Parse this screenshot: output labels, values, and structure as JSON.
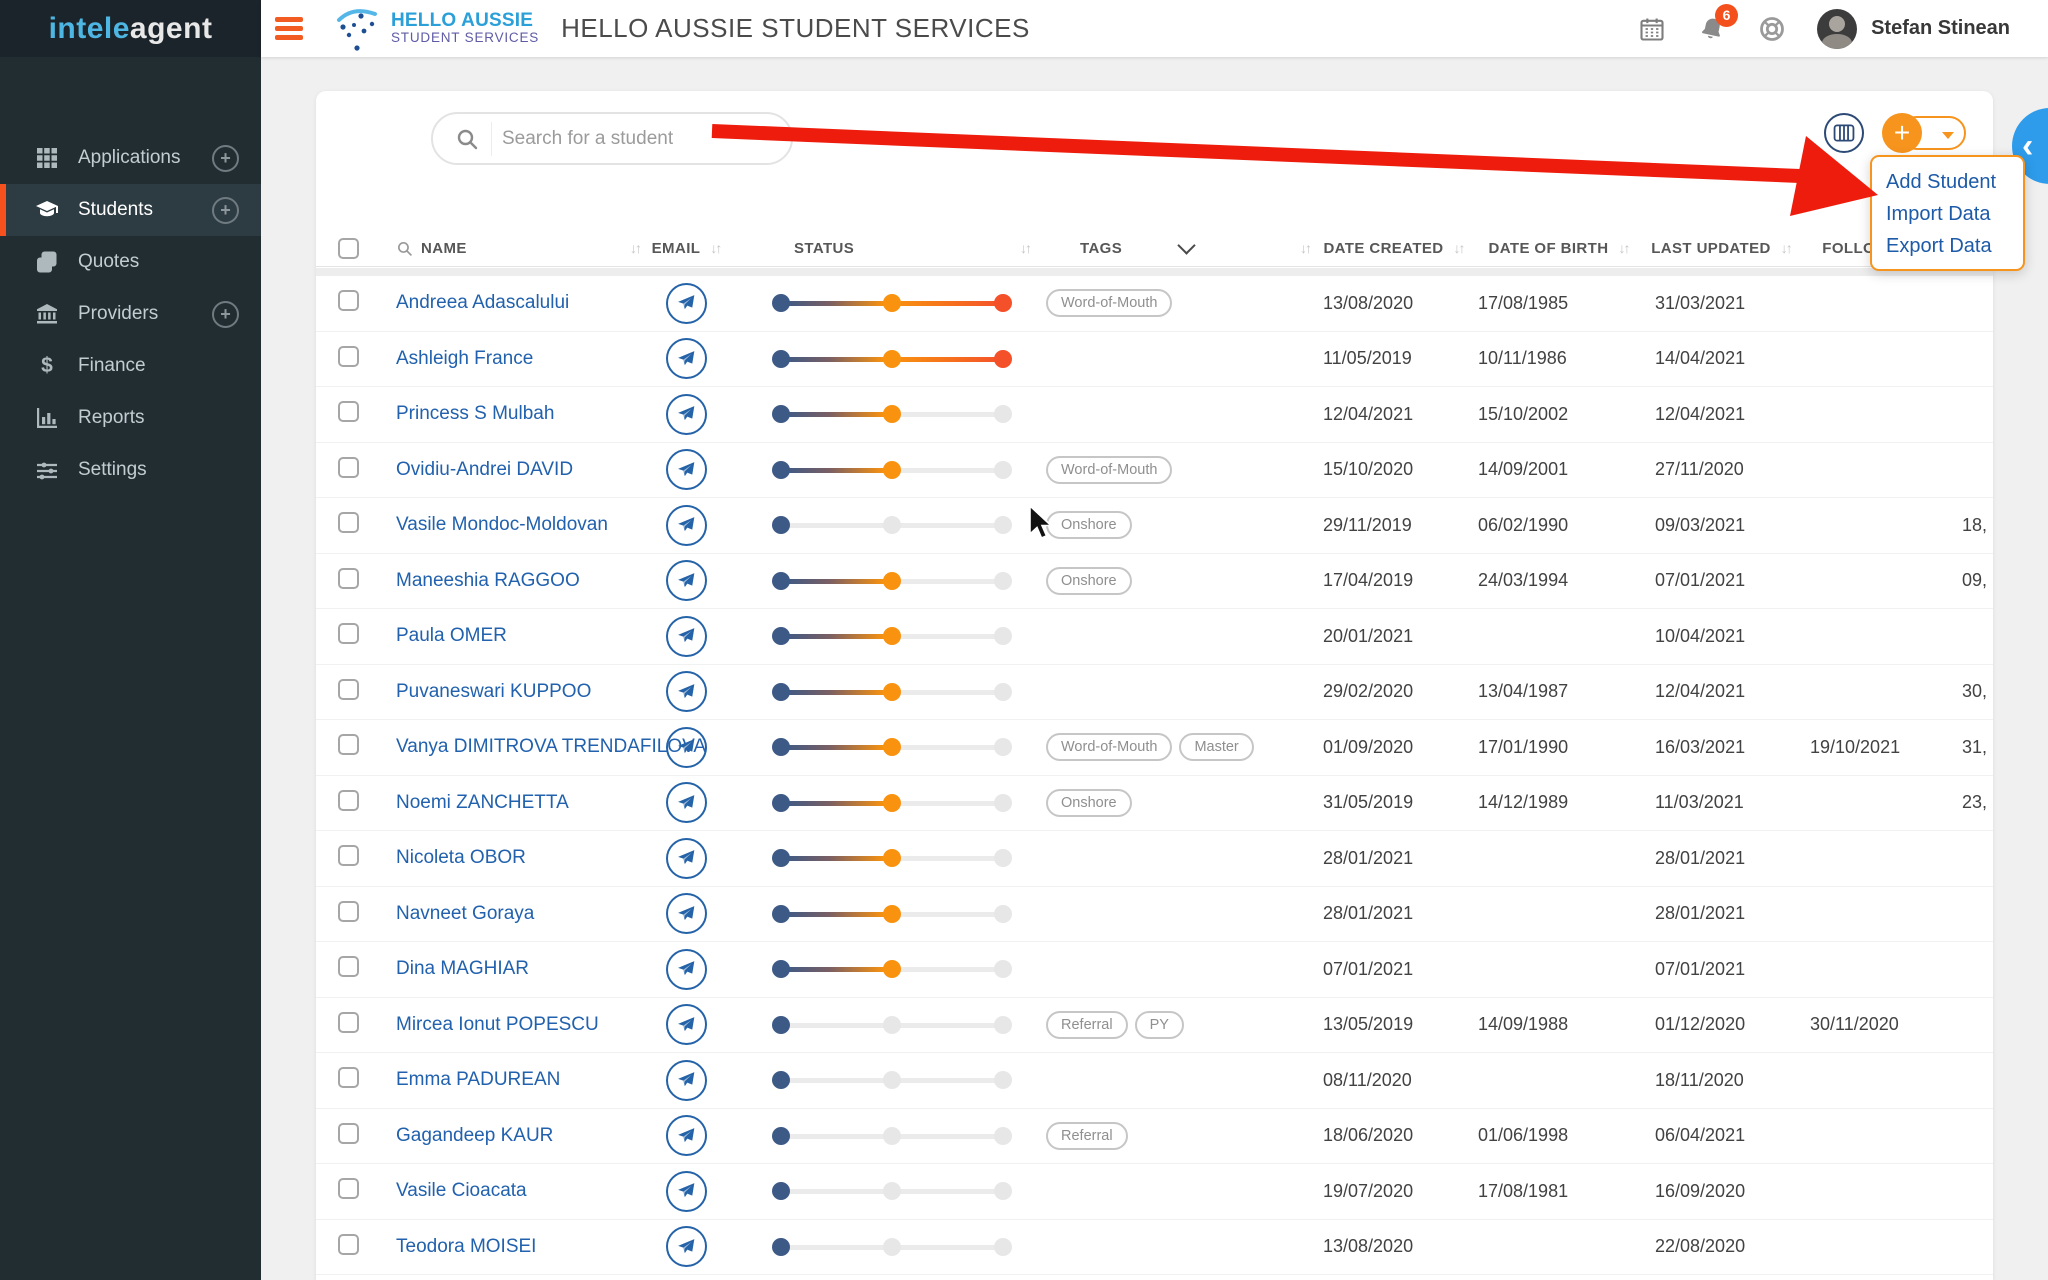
{
  "colors": {
    "accent-orange": "#f7941e",
    "accent-red": "#f4511e",
    "link-blue": "#2161ad",
    "slider-navy": "#3d5a86",
    "slider-orange": "#f8920f",
    "slider-red": "#f4502a",
    "arrow-red": "#ee1c0c",
    "chevron-blue": "#2e9ceb",
    "sidebar-bg": "#222d32",
    "sidebar-logo-bg": "#1b242a",
    "sidebar-active-bg": "#2d3b42"
  },
  "sidebar": {
    "logo_part1": "intele",
    "logo_part2": "agent",
    "items": [
      {
        "label": "Applications",
        "icon": "grid",
        "has_plus": true,
        "active": false
      },
      {
        "label": "Students",
        "icon": "graduation-cap",
        "has_plus": true,
        "active": true
      },
      {
        "label": "Quotes",
        "icon": "quotes",
        "has_plus": false,
        "active": false
      },
      {
        "label": "Providers",
        "icon": "bank",
        "has_plus": true,
        "active": false
      },
      {
        "label": "Finance",
        "icon": "dollar",
        "has_plus": false,
        "active": false
      },
      {
        "label": "Reports",
        "icon": "chart",
        "has_plus": false,
        "active": false
      },
      {
        "label": "Settings",
        "icon": "sliders",
        "has_plus": false,
        "active": false
      }
    ]
  },
  "header": {
    "brand_line1": "HELLO AUSSIE",
    "brand_line2": "STUDENT SERVICES",
    "org_name": "HELLO AUSSIE STUDENT SERVICES",
    "notification_count": "6",
    "user_name": "Stefan Stinean"
  },
  "toolbar": {
    "search_placeholder": "Search for a student",
    "menu_items": [
      "Add Student",
      "Import Data",
      "Export Data"
    ]
  },
  "table": {
    "headers": {
      "name": "NAME",
      "email": "EMAIL",
      "status": "STATUS",
      "tags": "TAGS",
      "created": "DATE CREATED",
      "dob": "DATE OF BIRTH",
      "updated": "LAST UPDATED",
      "follow": "FOLLOW"
    },
    "rows": [
      {
        "name": "Andreea Adascalului",
        "status": 3,
        "tags": [
          "Word-of-Mouth"
        ],
        "created": "13/08/2020",
        "dob": "17/08/1985",
        "updated": "31/03/2021",
        "follow": "",
        "extra": ""
      },
      {
        "name": "Ashleigh France",
        "status": 3,
        "tags": [],
        "created": "11/05/2019",
        "dob": "10/11/1986",
        "updated": "14/04/2021",
        "follow": "",
        "extra": ""
      },
      {
        "name": "Princess S Mulbah",
        "status": 2,
        "tags": [],
        "created": "12/04/2021",
        "dob": "15/10/2002",
        "updated": "12/04/2021",
        "follow": "",
        "extra": ""
      },
      {
        "name": "Ovidiu-Andrei DAVID",
        "status": 2,
        "tags": [
          "Word-of-Mouth"
        ],
        "created": "15/10/2020",
        "dob": "14/09/2001",
        "updated": "27/11/2020",
        "follow": "",
        "extra": ""
      },
      {
        "name": "Vasile Mondoc-Moldovan",
        "status": 1,
        "tags": [
          "Onshore"
        ],
        "created": "29/11/2019",
        "dob": "06/02/1990",
        "updated": "09/03/2021",
        "follow": "",
        "extra": "18,"
      },
      {
        "name": "Maneeshia RAGGOO",
        "status": 2,
        "tags": [
          "Onshore"
        ],
        "created": "17/04/2019",
        "dob": "24/03/1994",
        "updated": "07/01/2021",
        "follow": "",
        "extra": "09,"
      },
      {
        "name": "Paula OMER",
        "status": 2,
        "tags": [],
        "created": "20/01/2021",
        "dob": "",
        "updated": "10/04/2021",
        "follow": "",
        "extra": ""
      },
      {
        "name": "Puvaneswari KUPPOO",
        "status": 2,
        "tags": [],
        "created": "29/02/2020",
        "dob": "13/04/1987",
        "updated": "12/04/2021",
        "follow": "",
        "extra": "30,"
      },
      {
        "name": "Vanya DIMITROVA TRENDAFILOVA",
        "status": 2,
        "tags": [
          "Word-of-Mouth",
          "Master"
        ],
        "created": "01/09/2020",
        "dob": "17/01/1990",
        "updated": "16/03/2021",
        "follow": "19/10/2021",
        "extra": "31,"
      },
      {
        "name": "Noemi ZANCHETTA",
        "status": 2,
        "tags": [
          "Onshore"
        ],
        "created": "31/05/2019",
        "dob": "14/12/1989",
        "updated": "11/03/2021",
        "follow": "",
        "extra": "23,"
      },
      {
        "name": "Nicoleta OBOR",
        "status": 2,
        "tags": [],
        "created": "28/01/2021",
        "dob": "",
        "updated": "28/01/2021",
        "follow": "",
        "extra": ""
      },
      {
        "name": "Navneet Goraya",
        "status": 2,
        "tags": [],
        "created": "28/01/2021",
        "dob": "",
        "updated": "28/01/2021",
        "follow": "",
        "extra": ""
      },
      {
        "name": "Dina MAGHIAR",
        "status": 2,
        "tags": [],
        "created": "07/01/2021",
        "dob": "",
        "updated": "07/01/2021",
        "follow": "",
        "extra": ""
      },
      {
        "name": "Mircea Ionut POPESCU",
        "status": 1,
        "tags": [
          "Referral",
          "PY"
        ],
        "created": "13/05/2019",
        "dob": "14/09/1988",
        "updated": "01/12/2020",
        "follow": "30/11/2020",
        "extra": ""
      },
      {
        "name": "Emma PADUREAN",
        "status": 1,
        "tags": [],
        "created": "08/11/2020",
        "dob": "",
        "updated": "18/11/2020",
        "follow": "",
        "extra": ""
      },
      {
        "name": "Gagandeep KAUR",
        "status": 1,
        "tags": [
          "Referral"
        ],
        "created": "18/06/2020",
        "dob": "01/06/1998",
        "updated": "06/04/2021",
        "follow": "",
        "extra": ""
      },
      {
        "name": "Vasile Cioacata",
        "status": 1,
        "tags": [],
        "created": "19/07/2020",
        "dob": "17/08/1981",
        "updated": "16/09/2020",
        "follow": "",
        "extra": ""
      },
      {
        "name": "Teodora MOISEI",
        "status": 1,
        "tags": [],
        "created": "13/08/2020",
        "dob": "",
        "updated": "22/08/2020",
        "follow": "",
        "extra": ""
      },
      {
        "name": "",
        "status": 0,
        "tags": [],
        "created": "",
        "dob": "",
        "updated": "",
        "follow": "",
        "extra": "",
        "partial": true
      }
    ]
  }
}
